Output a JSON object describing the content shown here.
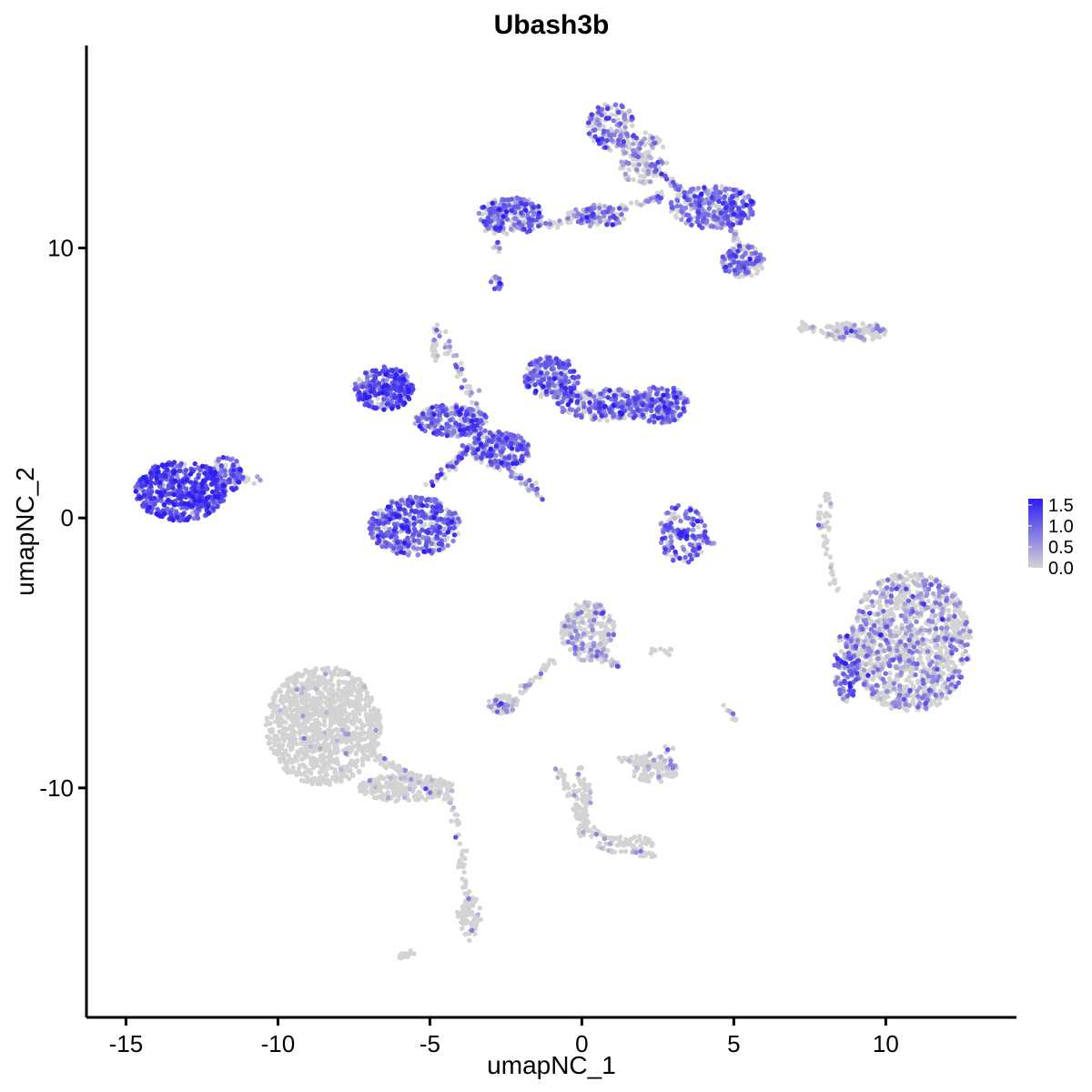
{
  "chart_data": {
    "type": "scatter",
    "title": "Ubash3b",
    "xlabel": "umapNC_1",
    "ylabel": "umapNC_2",
    "xlim": [
      -16.3,
      14.3
    ],
    "ylim": [
      -18.5,
      17.5
    ],
    "x_ticks": [
      -15,
      -10,
      -5,
      0,
      5,
      10
    ],
    "x_tick_labels": [
      "-15",
      "-10",
      "-5",
      "0",
      "5",
      "10"
    ],
    "y_ticks": [
      -10,
      0,
      10
    ],
    "y_tick_labels": [
      "-10",
      "0",
      "10"
    ],
    "grid": false,
    "legend": {
      "placement": "right",
      "labels": [
        "1.5",
        "1.0",
        "0.5",
        "0.0"
      ],
      "values": [
        1.5,
        1.0,
        0.5,
        0.0
      ],
      "range": [
        0.0,
        1.65
      ],
      "low_color": "#d3d3d3",
      "high_color": "#2f1ef2"
    },
    "clusters": [
      {
        "cx": -13.2,
        "cy": 1.0,
        "rx": 1.5,
        "ry": 1.1,
        "n": 520,
        "expr": 0.85,
        "rank": 0
      },
      {
        "cx": -11.7,
        "cy": 1.6,
        "rx": 0.5,
        "ry": 0.7,
        "n": 90,
        "expr": 0.6,
        "rank": 1
      },
      {
        "cx": -5.5,
        "cy": -0.3,
        "rx": 1.5,
        "ry": 1.1,
        "n": 420,
        "expr": 0.7,
        "rank": 2
      },
      {
        "cx": -6.5,
        "cy": 4.8,
        "rx": 1.0,
        "ry": 0.8,
        "n": 260,
        "expr": 0.8,
        "rank": 3
      },
      {
        "cx": -4.3,
        "cy": 3.6,
        "rx": 1.2,
        "ry": 0.6,
        "n": 240,
        "expr": 0.6,
        "rank": 4
      },
      {
        "cx": -2.7,
        "cy": 2.5,
        "rx": 1.0,
        "ry": 0.7,
        "n": 220,
        "expr": 0.6,
        "rank": 5
      },
      {
        "cx": -1.0,
        "cy": 5.2,
        "rx": 0.9,
        "ry": 0.8,
        "n": 220,
        "expr": 0.65,
        "rank": 6
      },
      {
        "cx": 0.8,
        "cy": 4.2,
        "rx": 1.6,
        "ry": 0.6,
        "n": 260,
        "expr": 0.6,
        "rank": 7
      },
      {
        "cx": 2.6,
        "cy": 4.2,
        "rx": 0.9,
        "ry": 0.7,
        "n": 200,
        "expr": 0.65,
        "rank": 8
      },
      {
        "cx": -4.8,
        "cy": 6.5,
        "rx": 0.15,
        "ry": 0.7,
        "n": 25,
        "expr": 0.2,
        "rank": 9
      },
      {
        "cx": 1.0,
        "cy": 14.5,
        "rx": 0.8,
        "ry": 0.9,
        "n": 150,
        "expr": 0.5,
        "rank": 10
      },
      {
        "cx": 2.0,
        "cy": 13.3,
        "rx": 0.8,
        "ry": 1.0,
        "n": 120,
        "expr": 0.35,
        "rank": 11
      },
      {
        "cx": 4.3,
        "cy": 11.5,
        "rx": 1.4,
        "ry": 0.8,
        "n": 300,
        "expr": 0.6,
        "rank": 12
      },
      {
        "cx": -2.3,
        "cy": 11.2,
        "rx": 1.1,
        "ry": 0.7,
        "n": 230,
        "expr": 0.6,
        "rank": 13
      },
      {
        "cx": 0.5,
        "cy": 11.2,
        "rx": 1.0,
        "ry": 0.4,
        "n": 90,
        "expr": 0.5,
        "rank": 14
      },
      {
        "cx": 5.3,
        "cy": 9.5,
        "rx": 0.7,
        "ry": 0.6,
        "n": 140,
        "expr": 0.55,
        "rank": 15
      },
      {
        "cx": 9.0,
        "cy": 6.9,
        "rx": 1.1,
        "ry": 0.35,
        "n": 110,
        "expr": 0.15,
        "rank": 16
      },
      {
        "cx": 10.8,
        "cy": -4.6,
        "rx": 2.0,
        "ry": 2.6,
        "n": 1200,
        "expr": 0.3,
        "rank": 17
      },
      {
        "cx": 8.7,
        "cy": -5.5,
        "rx": 0.4,
        "ry": 1.3,
        "n": 110,
        "expr": 0.55,
        "rank": 18
      },
      {
        "cx": -8.5,
        "cy": -7.7,
        "rx": 1.9,
        "ry": 2.2,
        "n": 1100,
        "expr": 0.02,
        "rank": 19
      },
      {
        "cx": -5.8,
        "cy": -10.0,
        "rx": 1.6,
        "ry": 0.5,
        "n": 220,
        "expr": 0.06,
        "rank": 20
      },
      {
        "cx": -3.7,
        "cy": -14.7,
        "rx": 0.4,
        "ry": 0.8,
        "n": 60,
        "expr": 0.05,
        "rank": 21
      },
      {
        "cx": 0.2,
        "cy": -4.2,
        "rx": 0.9,
        "ry": 1.1,
        "n": 260,
        "expr": 0.25,
        "rank": 22
      },
      {
        "cx": -2.6,
        "cy": -6.9,
        "rx": 0.5,
        "ry": 0.35,
        "n": 60,
        "expr": 0.15,
        "rank": 23
      },
      {
        "cx": 2.4,
        "cy": -9.3,
        "rx": 0.8,
        "ry": 0.5,
        "n": 110,
        "expr": 0.1,
        "rank": 24
      },
      {
        "cx": 0.0,
        "cy": -10.5,
        "rx": 0.3,
        "ry": 1.3,
        "n": 70,
        "expr": 0.05,
        "rank": 25
      },
      {
        "cx": 1.5,
        "cy": -12.1,
        "rx": 1.0,
        "ry": 0.35,
        "n": 45,
        "expr": 0.1,
        "rank": 26
      },
      {
        "cx": 3.3,
        "cy": -0.6,
        "rx": 0.8,
        "ry": 1.1,
        "n": 120,
        "expr": 0.65,
        "rank": 27
      },
      {
        "cx": 8.0,
        "cy": 0.0,
        "rx": 0.25,
        "ry": 1.0,
        "n": 35,
        "expr": 0.1,
        "rank": 28
      },
      {
        "cx": -2.8,
        "cy": 8.7,
        "rx": 0.2,
        "ry": 0.25,
        "n": 15,
        "expr": 0.6,
        "rank": 29
      }
    ],
    "bridges": [
      {
        "x1": -11.6,
        "y1": 1.5,
        "x2": -10.4,
        "y2": 1.4,
        "n": 20,
        "expr": 0.4
      },
      {
        "x1": -5.0,
        "y1": 1.2,
        "x2": -3.2,
        "y2": 3.2,
        "n": 60,
        "expr": 0.5
      },
      {
        "x1": -4.9,
        "y1": 7.5,
        "x2": -3.0,
        "y2": 3.0,
        "n": 50,
        "expr": 0.4
      },
      {
        "x1": -3.2,
        "y1": 2.5,
        "x2": -1.3,
        "y2": 0.8,
        "n": 40,
        "expr": 0.5
      },
      {
        "x1": -1.2,
        "y1": 10.8,
        "x2": 3.0,
        "y2": 12.0,
        "n": 70,
        "expr": 0.4
      },
      {
        "x1": 1.2,
        "y1": 14.0,
        "x2": 4.0,
        "y2": 11.5,
        "n": 60,
        "expr": 0.4
      },
      {
        "x1": 4.5,
        "y1": 11.2,
        "x2": 5.5,
        "y2": 9.8,
        "n": 40,
        "expr": 0.4
      },
      {
        "x1": -3.2,
        "y1": 11.4,
        "x2": -2.8,
        "y2": 10.0,
        "n": 20,
        "expr": 0.3
      },
      {
        "x1": -7.2,
        "y1": -8.5,
        "x2": -4.3,
        "y2": -10.5,
        "n": 100,
        "expr": 0.05
      },
      {
        "x1": -4.2,
        "y1": -10.8,
        "x2": -3.6,
        "y2": -15.5,
        "n": 60,
        "expr": 0.05
      },
      {
        "x1": -6.0,
        "y1": -16.3,
        "x2": -5.6,
        "y2": -16.1,
        "n": 12,
        "expr": 0.0
      },
      {
        "x1": -0.9,
        "y1": -5.2,
        "x2": -2.3,
        "y2": -6.8,
        "n": 40,
        "expr": 0.2
      },
      {
        "x1": 0.5,
        "y1": -5.0,
        "x2": 1.2,
        "y2": -5.5,
        "n": 25,
        "expr": 0.2
      },
      {
        "x1": -0.8,
        "y1": -9.3,
        "x2": 0.3,
        "y2": -11.6,
        "n": 40,
        "expr": 0.05
      },
      {
        "x1": 0.3,
        "y1": -11.6,
        "x2": 2.4,
        "y2": -12.6,
        "n": 40,
        "expr": 0.1
      },
      {
        "x1": 1.3,
        "y1": -9.0,
        "x2": 3.2,
        "y2": -8.5,
        "n": 25,
        "expr": 0.05
      },
      {
        "x1": 8.4,
        "y1": -2.8,
        "x2": 8.1,
        "y2": -1.0,
        "n": 15,
        "expr": 0.1
      },
      {
        "x1": 2.5,
        "y1": -0.3,
        "x2": 4.3,
        "y2": -0.9,
        "n": 40,
        "expr": 0.7
      },
      {
        "x1": 7.2,
        "y1": 7.1,
        "x2": 8.0,
        "y2": 6.8,
        "n": 15,
        "expr": 0.1
      },
      {
        "x1": 4.8,
        "y1": -7.0,
        "x2": 5.1,
        "y2": -7.6,
        "n": 10,
        "expr": 0.15
      },
      {
        "x1": 2.2,
        "y1": -4.9,
        "x2": 3.0,
        "y2": -4.9,
        "n": 10,
        "expr": 0.1
      }
    ]
  }
}
